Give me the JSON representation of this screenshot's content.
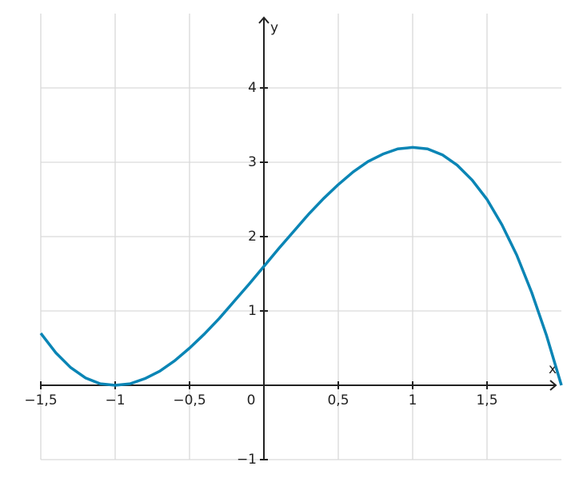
{
  "chart_data": {
    "type": "line",
    "x_label": "x",
    "y_label": "y",
    "x": [
      -1.5,
      -1.4,
      -1.3,
      -1.2,
      -1.1,
      -1.0,
      -0.9,
      -0.8,
      -0.7,
      -0.6,
      -0.5,
      -0.4,
      -0.3,
      -0.2,
      -0.1,
      0,
      0.1,
      0.2,
      0.3,
      0.4,
      0.5,
      0.6,
      0.7,
      0.8,
      0.9,
      1.0,
      1.1,
      1.2,
      1.3,
      1.4,
      1.5,
      1.6,
      1.7,
      1.8,
      1.9,
      2.0
    ],
    "values": [
      0.7,
      0.44,
      0.24,
      0.1,
      0.02,
      0,
      0.02,
      0.09,
      0.19,
      0.33,
      0.5,
      0.69,
      0.9,
      1.13,
      1.36,
      1.6,
      1.84,
      2.07,
      2.3,
      2.51,
      2.7,
      2.87,
      3.01,
      3.11,
      3.18,
      3.2,
      3.18,
      3.1,
      2.96,
      2.76,
      2.5,
      2.16,
      1.75,
      1.25,
      0.67,
      0
    ],
    "color": "#0a85b5",
    "xlim": [
      -1.5,
      2
    ],
    "ylim": [
      -1,
      5
    ],
    "xticks": [
      {
        "value": -1.5,
        "label": "−1,5"
      },
      {
        "value": -1,
        "label": "−1"
      },
      {
        "value": -0.5,
        "label": "−0,5"
      },
      0,
      {
        "value": 0.5,
        "label": "0,5"
      },
      1,
      {
        "value": 1.5,
        "label": "1,5"
      }
    ],
    "yticks": [
      {
        "value": -1,
        "label": "−1"
      },
      1,
      2,
      3,
      4
    ],
    "grid": true
  }
}
